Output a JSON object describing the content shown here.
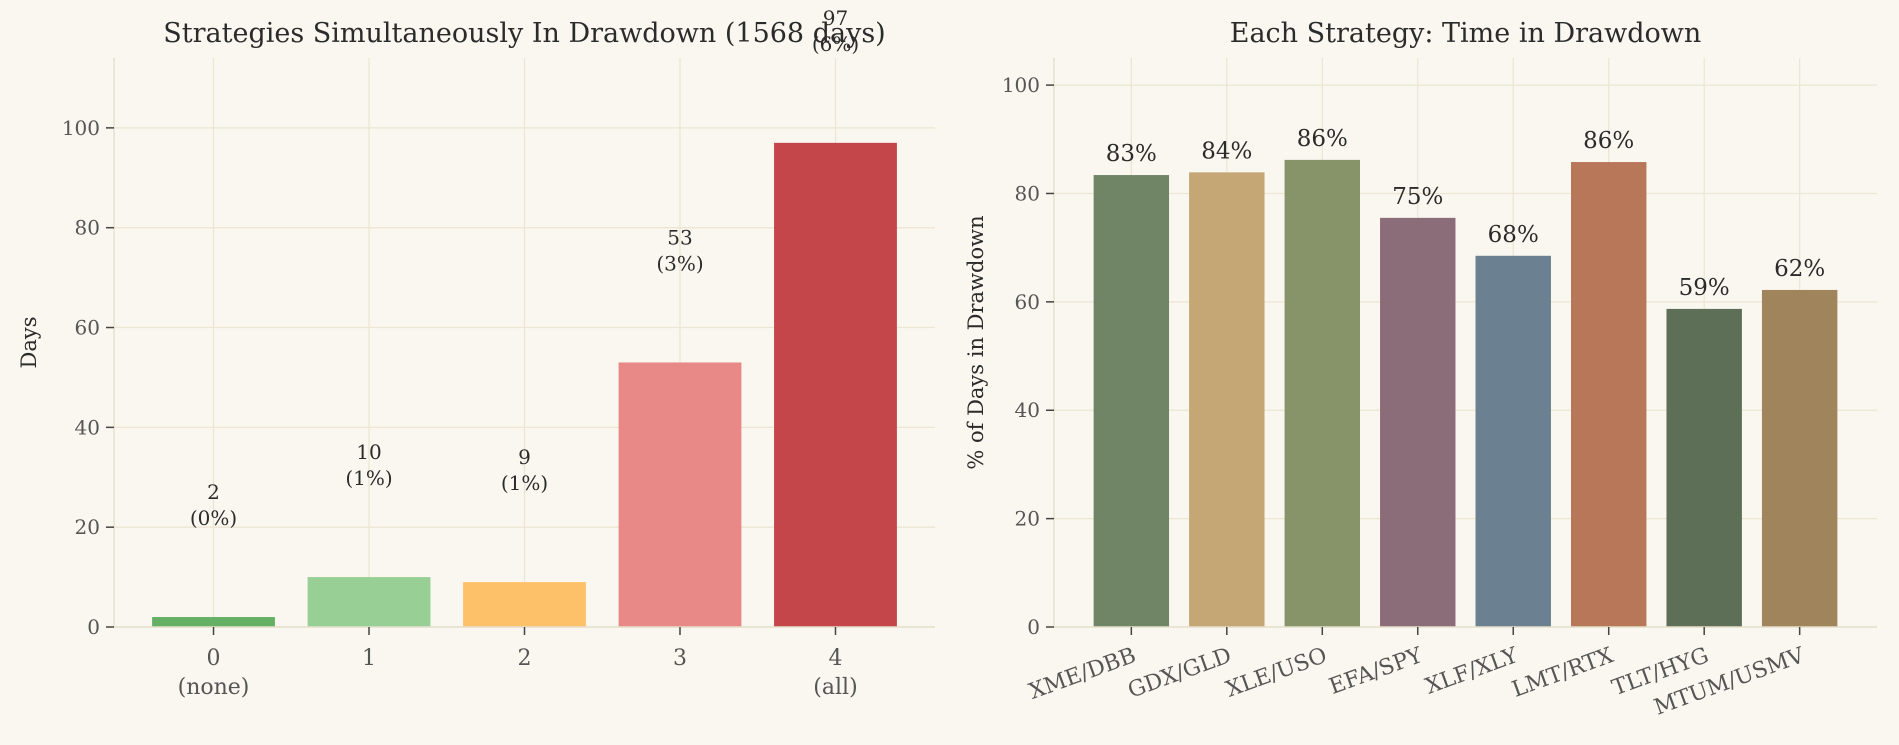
{
  "chart_data": [
    {
      "type": "bar",
      "title": "Strategies Simultaneously In Drawdown (1568 days)",
      "xlabel": "",
      "ylabel": "Days",
      "ylim": [
        0,
        114
      ],
      "yticks": [
        0,
        20,
        40,
        60,
        80,
        100
      ],
      "grid": true,
      "categories": [
        "0\n(none)",
        "1",
        "2",
        "3",
        "4\n(all)"
      ],
      "values": [
        2,
        10,
        9,
        53,
        97
      ],
      "bar_labels": [
        "2\n(0%)",
        "10\n(1%)",
        "9\n(1%)",
        "53\n(3%)",
        "97\n(6%)"
      ],
      "colors": [
        "#66b066",
        "#98cf94",
        "#fdc16a",
        "#e88987",
        "#c4454a"
      ]
    },
    {
      "type": "bar",
      "title": "Each Strategy: Time in Drawdown",
      "xlabel": "",
      "ylabel": "% of Days in Drawdown",
      "ylim": [
        0,
        105
      ],
      "yticks": [
        0,
        20,
        40,
        60,
        80,
        100
      ],
      "grid": true,
      "categories": [
        "XME/DBB",
        "GDX/GLD",
        "XLE/USO",
        "EFA/SPY",
        "XLF/XLY",
        "LMT/RTX",
        "TLT/HYG",
        "MTUM/USMV"
      ],
      "values": [
        83.4,
        83.9,
        86.2,
        75.5,
        68.5,
        85.8,
        58.7,
        62.2
      ],
      "bar_labels": [
        "83%",
        "84%",
        "86%",
        "75%",
        "68%",
        "86%",
        "59%",
        "62%"
      ],
      "colors": [
        "#6f8566",
        "#c4a774",
        "#879469",
        "#8b6c79",
        "#6b8090",
        "#b97759",
        "#5e6f57",
        "#9f845c"
      ]
    }
  ]
}
